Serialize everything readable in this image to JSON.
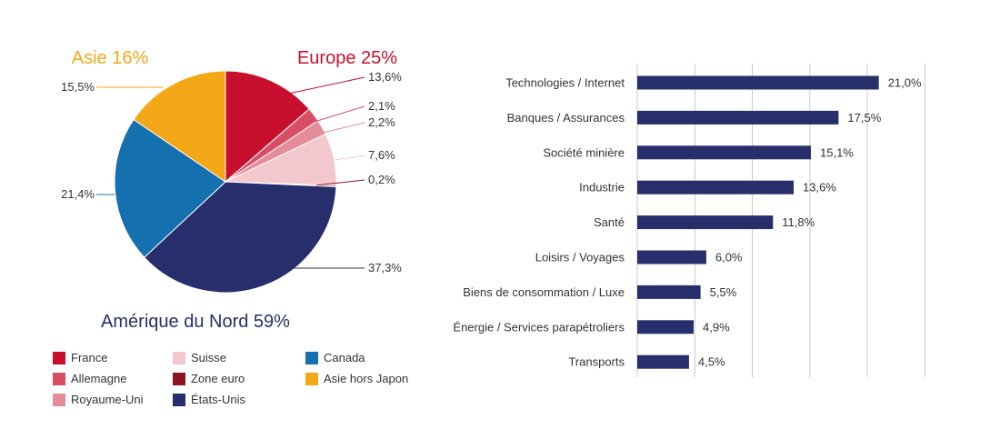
{
  "chart_data": [
    {
      "type": "pie",
      "region_titles": [
        {
          "key": "asie",
          "label": "Asie 16%",
          "color": "#F5A817"
        },
        {
          "key": "europe",
          "label": "Europe 25%",
          "color": "#C8102E"
        },
        {
          "key": "amerique",
          "label": "Amérique du Nord 59%",
          "color": "#262F6C"
        }
      ],
      "slices": [
        {
          "name": "France",
          "value": 13.6,
          "label": "13,6%",
          "color": "#C8102E"
        },
        {
          "name": "Allemagne",
          "value": 2.1,
          "label": "2,1%",
          "color": "#D84E64"
        },
        {
          "name": "Royaume-Uni",
          "value": 2.2,
          "label": "2,2%",
          "color": "#E58C99"
        },
        {
          "name": "Suisse",
          "value": 7.6,
          "label": "7,6%",
          "color": "#F2C7CD"
        },
        {
          "name": "Zone euro",
          "value": 0.2,
          "label": "0,2%",
          "color": "#8C1520"
        },
        {
          "name": "États-Unis",
          "value": 37.3,
          "label": "37,3%",
          "color": "#262F6C"
        },
        {
          "name": "Canada",
          "value": 21.4,
          "label": "21,4%",
          "color": "#1570B0"
        },
        {
          "name": "Asie hors Japon",
          "value": 15.5,
          "label": "15,5%",
          "color": "#F5A817"
        }
      ],
      "legend": [
        {
          "name": "France",
          "color": "#C8102E"
        },
        {
          "name": "Allemagne",
          "color": "#D84E64"
        },
        {
          "name": "Royaume-Uni",
          "color": "#E58C99"
        },
        {
          "name": "Suisse",
          "color": "#F2C7CD"
        },
        {
          "name": "Zone euro",
          "color": "#8C1520"
        },
        {
          "name": "États-Unis",
          "color": "#262F6C"
        },
        {
          "name": "Canada",
          "color": "#1570B0"
        },
        {
          "name": "Asie hors Japon",
          "color": "#F5A817"
        }
      ]
    },
    {
      "type": "bar",
      "orientation": "horizontal",
      "categories": [
        "Technologies / Internet",
        "Banques / Assurances",
        "Société minière",
        "Industrie",
        "Santé",
        "Loisirs / Voyages",
        "Biens de consommation / Luxe",
        "Énergie / Services parapétroliers",
        "Transports"
      ],
      "values": [
        21.0,
        17.5,
        15.1,
        13.6,
        11.8,
        6.0,
        5.5,
        4.9,
        4.5
      ],
      "value_labels": [
        "21,0%",
        "17,5%",
        "15,1%",
        "13,6%",
        "11,8%",
        "6,0%",
        "5,5%",
        "4,9%",
        "4,5%"
      ],
      "xlim": [
        0,
        25
      ],
      "grid": true,
      "color": "#262F6C"
    }
  ]
}
